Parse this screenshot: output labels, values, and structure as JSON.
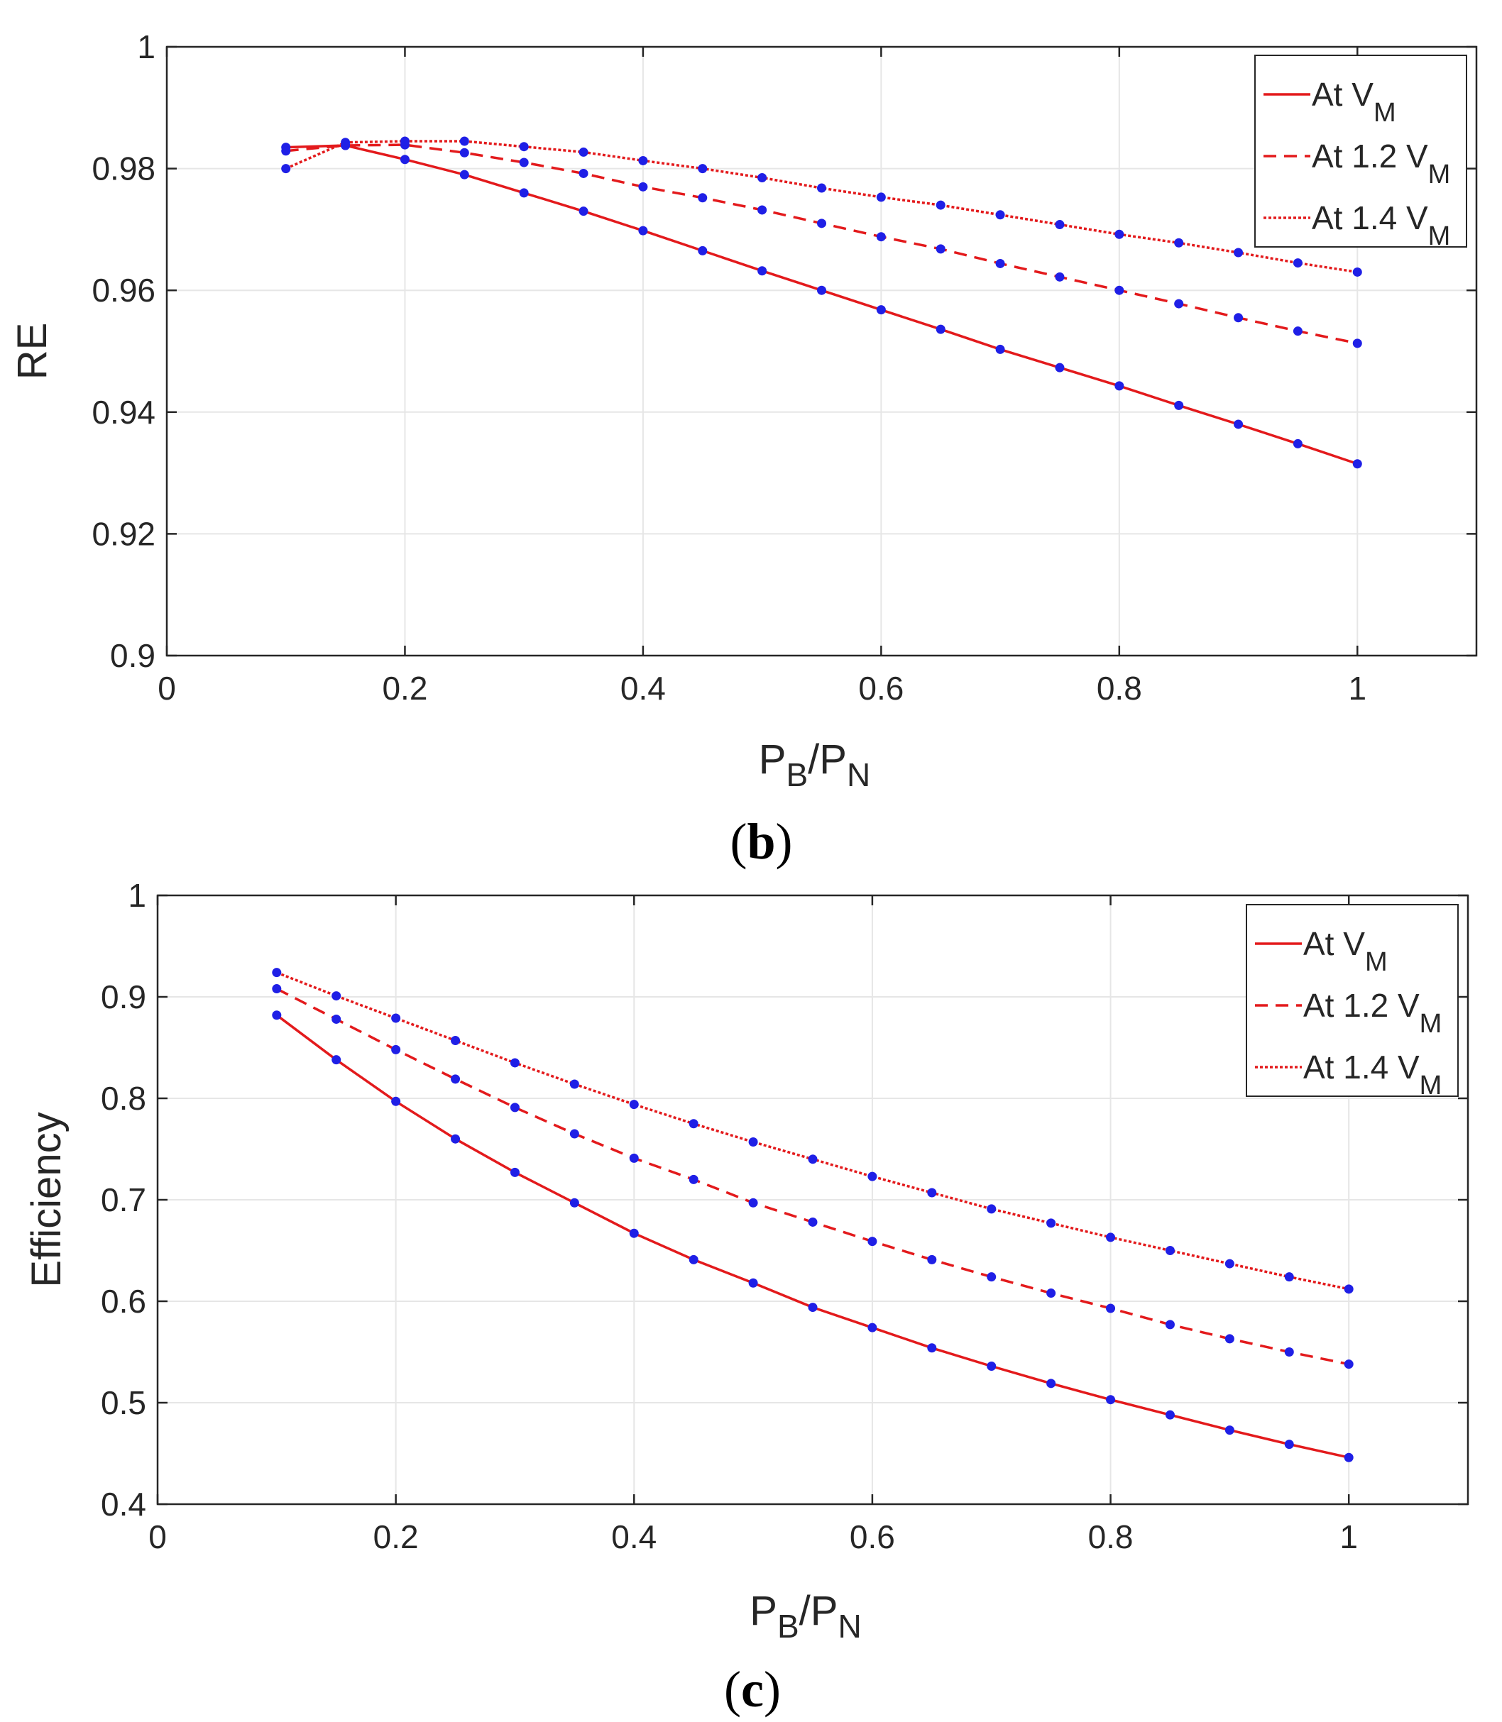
{
  "chart_data": [
    {
      "type": "line",
      "caption": "b",
      "ylabel": "RE",
      "xlabel": {
        "main": "P",
        "sub1": "B",
        "mid": "/P",
        "sub2": "N"
      },
      "xlim": [
        0,
        1.1
      ],
      "ylim": [
        0.9,
        1
      ],
      "xticks": [
        0,
        0.2,
        0.4,
        0.6,
        0.8,
        1
      ],
      "xtick_labels": [
        "0",
        "0.2",
        "0.4",
        "0.6",
        "0.8",
        "1"
      ],
      "yticks": [
        0.9,
        0.92,
        0.94,
        0.96,
        0.98,
        1
      ],
      "ytick_labels": [
        "0.9",
        "0.92",
        "0.94",
        "0.96",
        "0.98",
        "1"
      ],
      "grid": true,
      "legend_position": "top-right",
      "x": [
        0.1,
        0.15,
        0.2,
        0.25,
        0.3,
        0.35,
        0.4,
        0.45,
        0.5,
        0.55,
        0.6,
        0.65,
        0.7,
        0.75,
        0.8,
        0.85,
        0.9,
        0.95,
        1.0
      ],
      "series": [
        {
          "name": "At V_M",
          "label_main": "At V",
          "label_sub": "M",
          "style": "solid",
          "values": [
            0.9835,
            0.9838,
            0.9815,
            0.979,
            0.976,
            0.973,
            0.9698,
            0.9665,
            0.9632,
            0.96,
            0.9568,
            0.9536,
            0.9503,
            0.9473,
            0.9443,
            0.9411,
            0.938,
            0.9348,
            0.9315
          ]
        },
        {
          "name": "At 1.2 V_M",
          "label_main": "At 1.2 V",
          "label_sub": "M",
          "style": "dashed",
          "values": [
            0.9829,
            0.9838,
            0.9839,
            0.9826,
            0.981,
            0.9792,
            0.977,
            0.9752,
            0.9732,
            0.971,
            0.9688,
            0.9668,
            0.9644,
            0.9622,
            0.96,
            0.9578,
            0.9555,
            0.9533,
            0.9513
          ]
        },
        {
          "name": "At 1.4 V_M",
          "label_main": "At 1.4 V",
          "label_sub": "M",
          "style": "dotted",
          "values": [
            0.98,
            0.9843,
            0.9845,
            0.9845,
            0.9836,
            0.9827,
            0.9813,
            0.98,
            0.9785,
            0.9768,
            0.9753,
            0.974,
            0.9724,
            0.9708,
            0.9692,
            0.9678,
            0.9662,
            0.9645,
            0.963
          ]
        }
      ],
      "line_color": "#e31a1c",
      "marker_color": "#1f1fe6"
    },
    {
      "type": "line",
      "caption": "c",
      "ylabel": "Efficiency",
      "xlabel": {
        "main": "P",
        "sub1": "B",
        "mid": "/P",
        "sub2": "N"
      },
      "xlim": [
        0,
        1.1
      ],
      "ylim": [
        0.4,
        1
      ],
      "xticks": [
        0,
        0.2,
        0.4,
        0.6,
        0.8,
        1
      ],
      "xtick_labels": [
        "0",
        "0.2",
        "0.4",
        "0.6",
        "0.8",
        "1"
      ],
      "yticks": [
        0.4,
        0.5,
        0.6,
        0.7,
        0.8,
        0.9,
        1
      ],
      "ytick_labels": [
        "0.4",
        "0.5",
        "0.6",
        "0.7",
        "0.8",
        "0.9",
        "1"
      ],
      "grid": true,
      "legend_position": "top-right",
      "x": [
        0.1,
        0.15,
        0.2,
        0.25,
        0.3,
        0.35,
        0.4,
        0.45,
        0.5,
        0.55,
        0.6,
        0.65,
        0.7,
        0.75,
        0.8,
        0.85,
        0.9,
        0.95,
        1.0
      ],
      "series": [
        {
          "name": "At V_M",
          "label_main": "At V",
          "label_sub": "M",
          "style": "solid",
          "values": [
            0.882,
            0.838,
            0.797,
            0.76,
            0.727,
            0.697,
            0.667,
            0.641,
            0.618,
            0.594,
            0.574,
            0.554,
            0.536,
            0.519,
            0.503,
            0.488,
            0.473,
            0.459,
            0.446
          ]
        },
        {
          "name": "At 1.2 V_M",
          "label_main": "At 1.2 V",
          "label_sub": "M",
          "style": "dashed",
          "values": [
            0.908,
            0.878,
            0.848,
            0.819,
            0.791,
            0.765,
            0.741,
            0.72,
            0.697,
            0.678,
            0.659,
            0.641,
            0.624,
            0.608,
            0.593,
            0.577,
            0.563,
            0.55,
            0.538
          ]
        },
        {
          "name": "At 1.4 V_M",
          "label_main": "At 1.4 V",
          "label_sub": "M",
          "style": "dotted",
          "values": [
            0.924,
            0.901,
            0.879,
            0.857,
            0.835,
            0.814,
            0.794,
            0.775,
            0.757,
            0.74,
            0.723,
            0.707,
            0.691,
            0.677,
            0.663,
            0.65,
            0.637,
            0.624,
            0.612
          ]
        }
      ],
      "line_color": "#e31a1c",
      "marker_color": "#1f1fe6"
    }
  ]
}
